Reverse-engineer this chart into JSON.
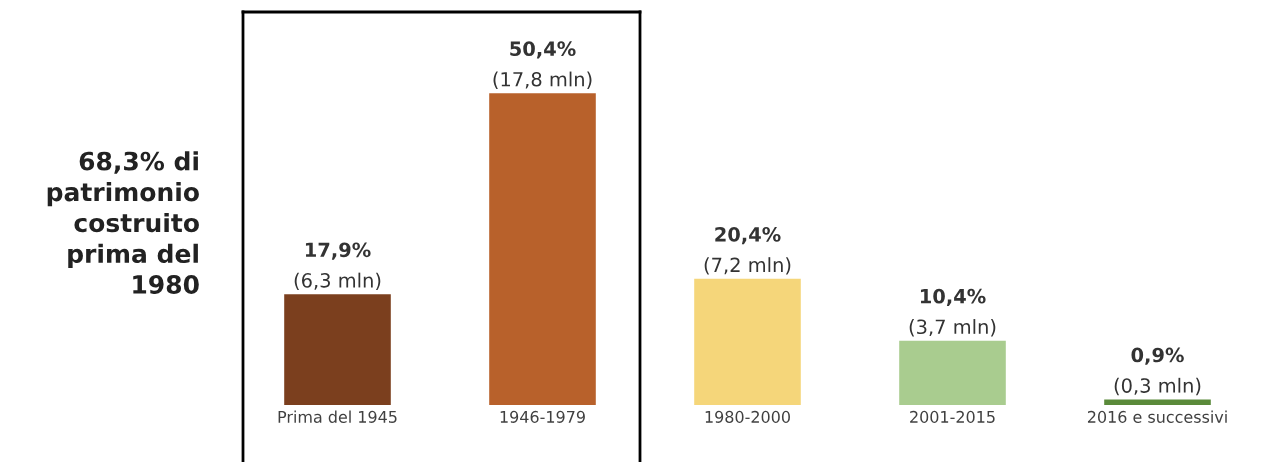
{
  "chart_data": {
    "type": "bar",
    "categories": [
      "Prima del 1945",
      "1946-1979",
      "1980-2000",
      "2001-2015",
      "2016 e successivi"
    ],
    "values": [
      17.9,
      50.4,
      20.4,
      10.4,
      0.9
    ],
    "colors": [
      "#7b3f1e",
      "#b8612b",
      "#f5d67a",
      "#a9cc8f",
      "#5a8a3a"
    ],
    "value_labels": [
      "17,9%\n(6,3 mln)",
      "50,4%\n(17,8 mln)",
      "20,4%\n(7,2 mln)",
      "10,4%\n(3,7 mln)",
      "0,9%\n(0,3 mln)"
    ],
    "annotations": [
      "68,3% di\npatrimonio\ncostruito\nprima del\n1980"
    ],
    "grid": false,
    "legend": false
  }
}
